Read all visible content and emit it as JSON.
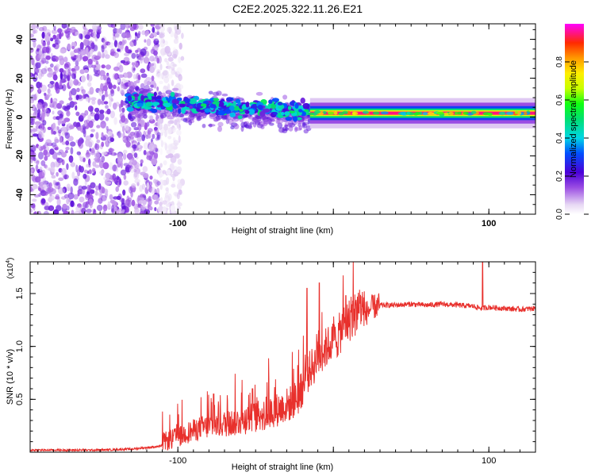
{
  "title": "C2E2.2025.322.11.26.E21",
  "chart_data": [
    {
      "type": "heatmap",
      "xlabel": "Height of straight line (km)",
      "ylabel": "Frequency (Hz)",
      "xlim": [
        -195,
        130
      ],
      "ylim": [
        -50,
        48
      ],
      "x_ticks": [
        -100,
        0,
        100
      ],
      "x_tick_labels": [
        "-100",
        "",
        "100"
      ],
      "y_ticks": [
        -40,
        -20,
        0,
        20,
        40
      ],
      "y_tick_labels": [
        "-40",
        "-20",
        "0",
        "20",
        "40"
      ],
      "features": [
        {
          "name": "broadband noise",
          "x_range": [
            -195,
            -112
          ],
          "y_range": [
            -50,
            48
          ],
          "amplitude": 0.12
        },
        {
          "name": "dispersed band",
          "x_range": [
            -132,
            -15
          ],
          "center_start": 8,
          "center_end": 3,
          "width": 14,
          "amplitude": 0.35
        },
        {
          "name": "narrow carrier line",
          "x_range": [
            -15,
            130
          ],
          "center": 2,
          "width": 3,
          "amplitude": 0.95
        }
      ],
      "colorbar": {
        "label": "Normalized spectral amplitude",
        "range": [
          0.0,
          1.0
        ],
        "ticks": [
          0.0,
          0.2,
          0.4,
          0.6,
          0.8
        ],
        "tick_labels": [
          "0.0",
          "0.2",
          "0.4",
          "0.6",
          "0.8"
        ]
      }
    },
    {
      "type": "line",
      "xlabel": "Height of straight line (km)",
      "ylabel": "SNR (10 * v/v)",
      "y_multiplier": "(x10",
      "y_multiplier_exp": "4",
      "y_multiplier_close": ")",
      "xlim": [
        -195,
        130
      ],
      "ylim": [
        0,
        1.8
      ],
      "x_ticks": [
        -100,
        0,
        100
      ],
      "x_tick_labels": [
        "-100",
        "",
        "100"
      ],
      "y_ticks": [
        0.5,
        1.0,
        1.5
      ],
      "y_tick_labels": [
        "0.5",
        "1.0",
        "1.5"
      ],
      "series": [
        {
          "name": "SNR",
          "color": "#e8302c",
          "x": [
            -195,
            -150,
            -130,
            -115,
            -105,
            -95,
            -85,
            -75,
            -65,
            -55,
            -45,
            -35,
            -28,
            -22,
            -18,
            -15,
            -12,
            -9,
            -6,
            -3,
            0,
            3,
            6,
            10,
            15,
            20,
            25,
            30,
            40,
            50,
            60,
            70,
            80,
            90,
            95,
            100,
            110,
            120,
            130
          ],
          "y": [
            0.02,
            0.02,
            0.03,
            0.05,
            0.07,
            0.13,
            0.18,
            0.2,
            0.22,
            0.25,
            0.28,
            0.33,
            0.38,
            0.45,
            0.6,
            0.7,
            0.75,
            0.82,
            0.88,
            0.92,
            0.95,
            1.0,
            1.08,
            1.15,
            1.22,
            1.3,
            1.37,
            1.39,
            1.39,
            1.4,
            1.39,
            1.4,
            1.39,
            1.38,
            1.36,
            1.37,
            1.36,
            1.35,
            1.36
          ]
        }
      ],
      "peaks": [
        {
          "x": -77,
          "y": 0.55
        },
        {
          "x": -52,
          "y": 0.6
        },
        {
          "x": -17,
          "y": 1.55
        },
        {
          "x": -9,
          "y": 1.6
        },
        {
          "x": 8,
          "y": 1.48
        },
        {
          "x": 96,
          "y": 1.8
        }
      ]
    }
  ]
}
